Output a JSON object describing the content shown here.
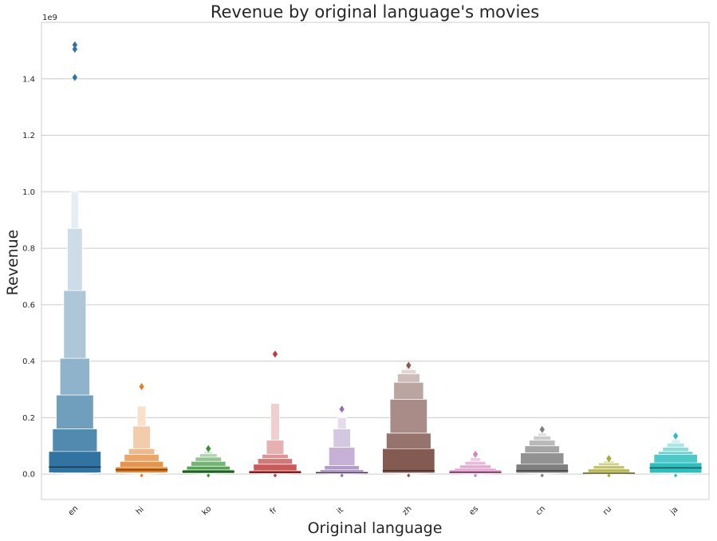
{
  "chart_data": {
    "type": "boxen",
    "title": "Revenue by original language's movies",
    "xlabel": "Original language",
    "ylabel": "Revenue",
    "y_offset_label": "1e9",
    "ylim": [
      -0.09,
      1.6
    ],
    "yticks": [
      0.0,
      0.2,
      0.4,
      0.6,
      0.8,
      1.0,
      1.2,
      1.4
    ],
    "ytick_labels": [
      "0.0",
      "0.2",
      "0.4",
      "0.6",
      "0.8",
      "1.0",
      "1.2",
      "1.4"
    ],
    "grid": "horizontal",
    "categories": [
      "en",
      "hi",
      "ko",
      "fr",
      "it",
      "zh",
      "es",
      "cn",
      "ru",
      "ja"
    ],
    "colors": [
      "#3274a1",
      "#e1812c",
      "#3a923a",
      "#c03d3e",
      "#9372b2",
      "#845b53",
      "#d684bd",
      "#7f7f7f",
      "#a9aa35",
      "#2fbebe"
    ],
    "series": [
      {
        "category": "en",
        "median": 0.025,
        "levels": [
          [
            0.005,
            0.08
          ],
          [
            0.0025,
            0.16
          ],
          [
            0.0015,
            0.28
          ],
          [
            0.001,
            0.41
          ],
          [
            0.0007,
            0.65
          ],
          [
            0.0005,
            0.87
          ],
          [
            0.0003,
            1.0
          ]
        ],
        "outliers": [
          1.52,
          1.505,
          1.405
        ]
      },
      {
        "category": "hi",
        "median": 0.015,
        "levels": [
          [
            0.005,
            0.025
          ],
          [
            0.003,
            0.045
          ],
          [
            0.0015,
            0.07
          ],
          [
            0.001,
            0.09
          ],
          [
            0.0007,
            0.17
          ],
          [
            0.0005,
            0.24
          ]
        ],
        "outliers": [
          0.31,
          -0.005
        ]
      },
      {
        "category": "ko",
        "median": 0.008,
        "levels": [
          [
            0.003,
            0.015
          ],
          [
            0.002,
            0.028
          ],
          [
            0.0015,
            0.045
          ],
          [
            0.001,
            0.06
          ],
          [
            0.0007,
            0.072
          ],
          [
            0.0005,
            0.08
          ]
        ],
        "outliers": [
          0.09,
          -0.005
        ]
      },
      {
        "category": "fr",
        "median": 0.006,
        "levels": [
          [
            0.002,
            0.012
          ],
          [
            0.0015,
            0.035
          ],
          [
            0.001,
            0.055
          ],
          [
            0.0007,
            0.07
          ],
          [
            0.0005,
            0.12
          ],
          [
            0.0003,
            0.25
          ]
        ],
        "outliers": [
          0.425,
          -0.005
        ]
      },
      {
        "category": "it",
        "median": 0.005,
        "levels": [
          [
            0.002,
            0.008
          ],
          [
            0.0015,
            0.015
          ],
          [
            0.001,
            0.03
          ],
          [
            0.0007,
            0.095
          ],
          [
            0.0005,
            0.16
          ],
          [
            0.0003,
            0.2
          ]
        ],
        "outliers": [
          0.23,
          -0.005
        ]
      },
      {
        "category": "zh",
        "median": 0.012,
        "levels": [
          [
            0.004,
            0.09
          ],
          [
            0.003,
            0.145
          ],
          [
            0.002,
            0.265
          ],
          [
            0.0015,
            0.325
          ],
          [
            0.001,
            0.355
          ],
          [
            0.0007,
            0.37
          ],
          [
            0.0005,
            0.38
          ]
        ],
        "outliers": [
          0.385,
          -0.005
        ]
      },
      {
        "category": "es",
        "median": 0.006,
        "levels": [
          [
            0.002,
            0.014
          ],
          [
            0.0015,
            0.02
          ],
          [
            0.001,
            0.032
          ],
          [
            0.0007,
            0.045
          ],
          [
            0.0005,
            0.058
          ]
        ],
        "outliers": [
          0.07,
          -0.005
        ]
      },
      {
        "category": "cn",
        "median": 0.012,
        "levels": [
          [
            0.004,
            0.035
          ],
          [
            0.003,
            0.075
          ],
          [
            0.002,
            0.1
          ],
          [
            0.0015,
            0.12
          ],
          [
            0.001,
            0.135
          ],
          [
            0.0007,
            0.145
          ]
        ],
        "outliers": [
          0.158,
          -0.005
        ]
      },
      {
        "category": "ru",
        "median": 0.003,
        "levels": [
          [
            0.001,
            0.006
          ],
          [
            0.0008,
            0.018
          ],
          [
            0.0006,
            0.03
          ],
          [
            0.0005,
            0.04
          ],
          [
            0.0003,
            0.047
          ]
        ],
        "outliers": [
          0.055,
          -0.005
        ]
      },
      {
        "category": "ja",
        "median": 0.022,
        "levels": [
          [
            0.004,
            0.04
          ],
          [
            0.003,
            0.07
          ],
          [
            0.002,
            0.08
          ],
          [
            0.0015,
            0.095
          ],
          [
            0.001,
            0.11
          ],
          [
            0.0007,
            0.12
          ]
        ],
        "outliers": [
          0.135,
          -0.005
        ]
      }
    ]
  }
}
